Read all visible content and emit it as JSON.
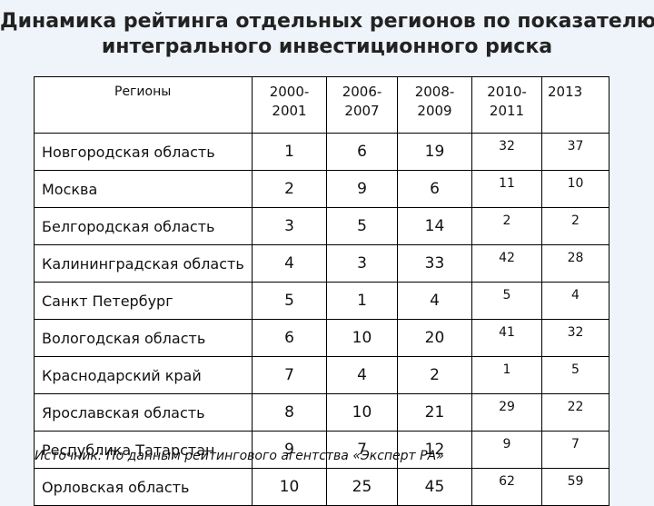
{
  "title": {
    "line1": "Динамика рейтинга отдельных регионов по показателю",
    "line2": "интегрального инвестиционного риска"
  },
  "table": {
    "region_header": "Регионы",
    "year_headers": [
      {
        "line1": "2000-",
        "line2": "2001"
      },
      {
        "line1": "2006-",
        "line2": "2007"
      },
      {
        "line1": "2008-",
        "line2": "2009"
      },
      {
        "line1": "2010-",
        "line2": "2011"
      },
      {
        "line1": "2013",
        "line2": ""
      }
    ],
    "rows": [
      {
        "region": "Новгородская область",
        "values": [
          "1",
          "6",
          "19",
          "32",
          "37"
        ]
      },
      {
        "region": "Москва",
        "values": [
          "2",
          "9",
          "6",
          "11",
          "10"
        ]
      },
      {
        "region": "Белгородская область",
        "values": [
          "3",
          "5",
          "14",
          "2",
          "2"
        ]
      },
      {
        "region": "Калининградская область",
        "values": [
          "4",
          "3",
          "33",
          "42",
          "28"
        ]
      },
      {
        "region": "Санкт Петербург",
        "values": [
          "5",
          "1",
          "4",
          "5",
          "4"
        ]
      },
      {
        "region": "Вологодская область",
        "values": [
          "6",
          "10",
          "20",
          "41",
          "32"
        ]
      },
      {
        "region": "Краснодарский край",
        "values": [
          "7",
          "4",
          "2",
          "1",
          "5"
        ]
      },
      {
        "region": "Ярославская область",
        "values": [
          "8",
          "10",
          "21",
          "29",
          "22"
        ]
      },
      {
        "region": "Республика Татарстан",
        "values": [
          "9",
          "7",
          "12",
          "9",
          "7"
        ]
      },
      {
        "region": "Орловская область",
        "values": [
          "10",
          "25",
          "45",
          "62",
          "59"
        ]
      }
    ]
  },
  "source": {
    "label": "Источник:",
    "text": " По данным рейтингового агентства «Эксперт РА»"
  }
}
